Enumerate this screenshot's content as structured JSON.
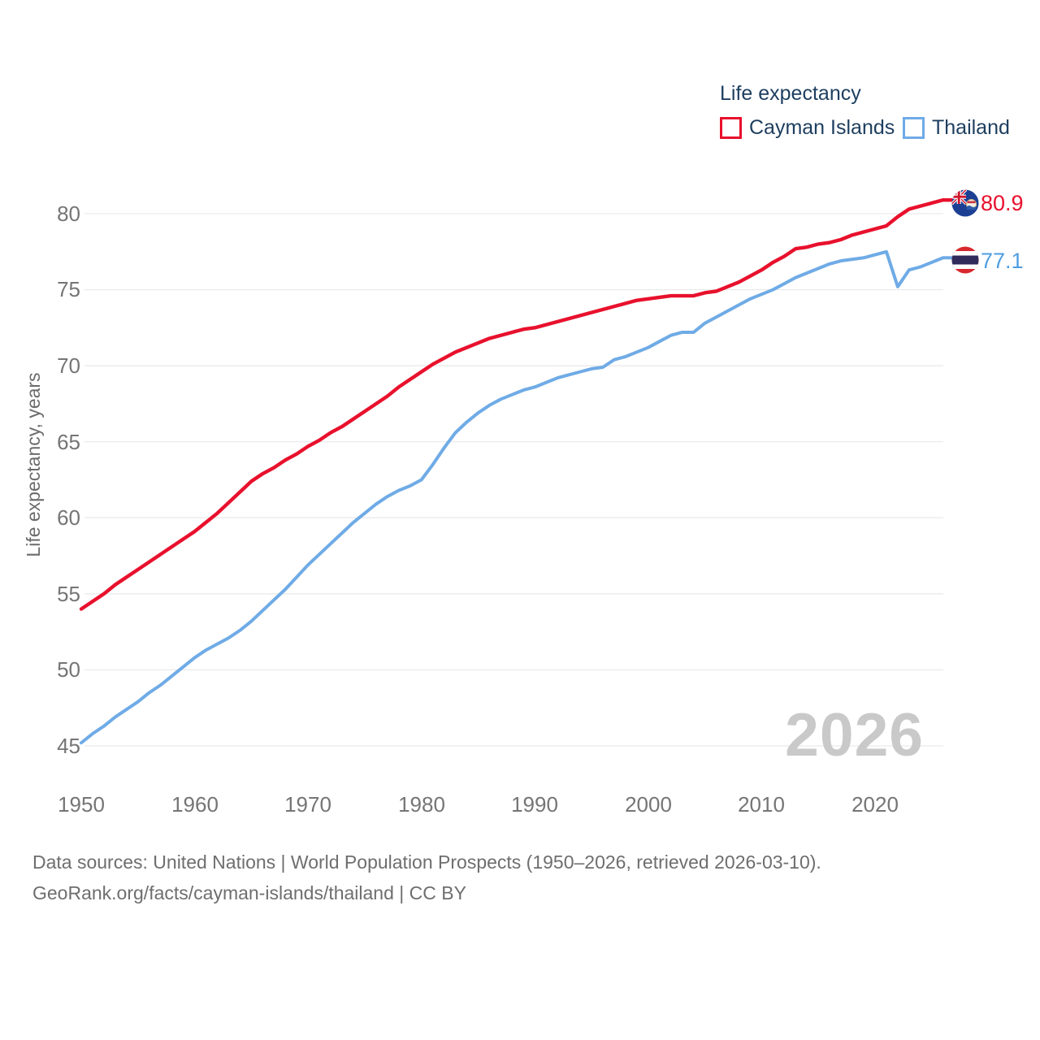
{
  "legend": {
    "title": "Life expectancy",
    "items": [
      {
        "label": "Cayman Islands",
        "color": "#e8112d"
      },
      {
        "label": "Thailand",
        "color": "#6fabe6"
      }
    ]
  },
  "axes": {
    "y_title": "Life expectancy, years",
    "y_ticks": [
      "80",
      "75",
      "70",
      "65",
      "60",
      "55",
      "50",
      "45"
    ],
    "x_ticks": [
      "1950",
      "1960",
      "1970",
      "1980",
      "1990",
      "2000",
      "2010",
      "2020"
    ]
  },
  "watermark": "2026",
  "end_labels": {
    "cayman": {
      "value": "80.9",
      "flag": "cayman-islands-flag"
    },
    "thailand": {
      "value": "77.1",
      "flag": "thailand-flag"
    }
  },
  "footer": {
    "line1": "Data sources: United Nations | World Population Prospects (1950–2026, retrieved 2026-03-10).",
    "line2": "GeoRank.org/facts/cayman-islands/thailand | CC BY"
  },
  "chart_data": {
    "type": "line",
    "title": "Life expectancy",
    "xlabel": "",
    "ylabel": "Life expectancy, years",
    "x_range": [
      1950,
      2026
    ],
    "ylim_displayed": [
      45,
      80
    ],
    "grid": "horizontal",
    "legend_position": "top-right",
    "x": [
      1950,
      1951,
      1952,
      1953,
      1954,
      1955,
      1956,
      1957,
      1958,
      1959,
      1960,
      1961,
      1962,
      1963,
      1964,
      1965,
      1966,
      1967,
      1968,
      1969,
      1970,
      1971,
      1972,
      1973,
      1974,
      1975,
      1976,
      1977,
      1978,
      1979,
      1980,
      1981,
      1982,
      1983,
      1984,
      1985,
      1986,
      1987,
      1988,
      1989,
      1990,
      1991,
      1992,
      1993,
      1994,
      1995,
      1996,
      1997,
      1998,
      1999,
      2000,
      2001,
      2002,
      2003,
      2004,
      2005,
      2006,
      2007,
      2008,
      2009,
      2010,
      2011,
      2012,
      2013,
      2014,
      2015,
      2016,
      2017,
      2018,
      2019,
      2020,
      2021,
      2022,
      2023,
      2024,
      2025,
      2026
    ],
    "series": [
      {
        "name": "Cayman Islands",
        "color": "#e8112d",
        "end_value": 80.9,
        "values": [
          54.0,
          54.5,
          55.0,
          55.6,
          56.1,
          56.6,
          57.1,
          57.6,
          58.1,
          58.6,
          59.1,
          59.7,
          60.3,
          61.0,
          61.7,
          62.4,
          62.9,
          63.3,
          63.8,
          64.2,
          64.7,
          65.1,
          65.6,
          66.0,
          66.5,
          67.0,
          67.5,
          68.0,
          68.6,
          69.1,
          69.6,
          70.1,
          70.5,
          70.9,
          71.2,
          71.5,
          71.8,
          72.0,
          72.2,
          72.4,
          72.5,
          72.7,
          72.9,
          73.1,
          73.3,
          73.5,
          73.7,
          73.9,
          74.1,
          74.3,
          74.4,
          74.5,
          74.6,
          74.6,
          74.6,
          74.8,
          74.9,
          75.2,
          75.5,
          75.9,
          76.3,
          76.8,
          77.2,
          77.7,
          77.8,
          78.0,
          78.1,
          78.3,
          78.6,
          78.8,
          79.0,
          79.2,
          79.8,
          80.3,
          80.5,
          80.7,
          80.9
        ]
      },
      {
        "name": "Thailand",
        "color": "#6fabe6",
        "end_value": 77.1,
        "values": [
          45.2,
          45.8,
          46.3,
          46.9,
          47.4,
          47.9,
          48.5,
          49.0,
          49.6,
          50.2,
          50.8,
          51.3,
          51.7,
          52.1,
          52.6,
          53.2,
          53.9,
          54.6,
          55.3,
          56.1,
          56.9,
          57.6,
          58.3,
          59.0,
          59.7,
          60.3,
          60.9,
          61.4,
          61.8,
          62.1,
          62.5,
          63.5,
          64.6,
          65.6,
          66.3,
          66.9,
          67.4,
          67.8,
          68.1,
          68.4,
          68.6,
          68.9,
          69.2,
          69.4,
          69.6,
          69.8,
          69.9,
          70.4,
          70.6,
          70.9,
          71.2,
          71.6,
          72.0,
          72.2,
          72.2,
          72.8,
          73.2,
          73.6,
          74.0,
          74.4,
          74.7,
          75.0,
          75.4,
          75.8,
          76.1,
          76.4,
          76.7,
          76.9,
          77.0,
          77.1,
          77.3,
          77.5,
          75.2,
          76.3,
          76.5,
          76.8,
          77.1
        ]
      }
    ]
  }
}
